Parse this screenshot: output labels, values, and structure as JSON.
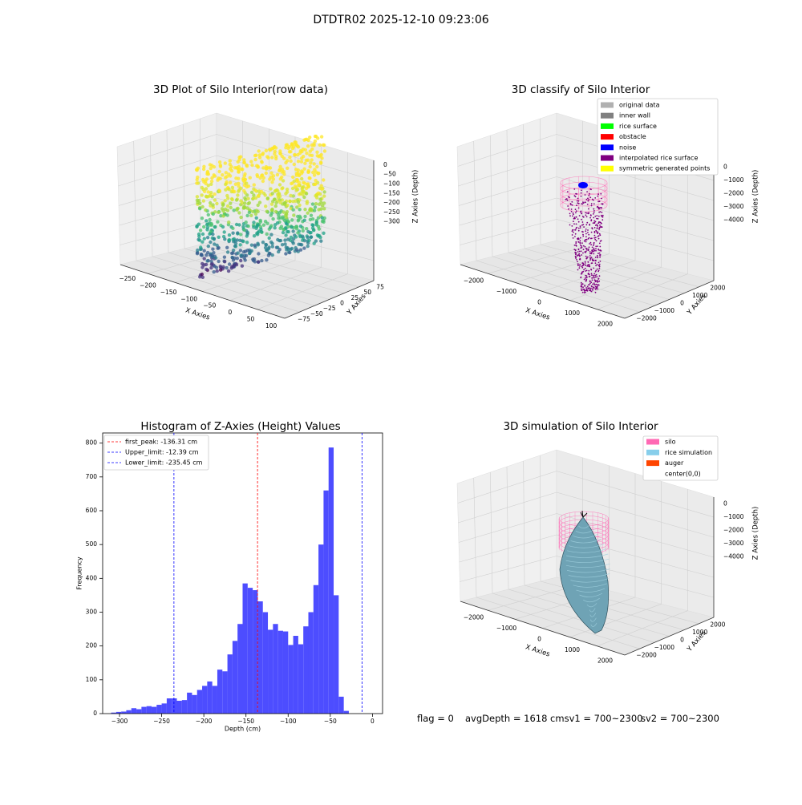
{
  "figure": {
    "suptitle": "DTDTR02 2025-12-10 09:23:06",
    "status": {
      "flag": "flag = 0",
      "avg_depth": "avgDepth = 1618 cmsv1 = 700~2300",
      "sv2": "sv2 = 700~2300"
    }
  },
  "colors": {
    "hist_bar": "#4d4dff",
    "first_peak_line": "#ff0000",
    "limit_line": "#0000ff",
    "silo": "#ff69b4",
    "rice": "#87ceeb",
    "auger": "#ff4500",
    "pane": "#f2f2f2"
  },
  "chart_data": [
    {
      "type": "scatter",
      "projection": "3d",
      "title": "3D Plot of Silo Interior(row data)",
      "xlabel": "X Axies",
      "ylabel": "Y Axies",
      "zlabel": "Z Axies (Depth)",
      "xticks": [
        "−250",
        "−200",
        "−150",
        "−100",
        "−50",
        "0",
        "50",
        "100"
      ],
      "yticks": [
        "−75",
        "−50",
        "−25",
        "0",
        "25",
        "50",
        "75"
      ],
      "zticks": [
        "0",
        "−50",
        "−100",
        "−150",
        "−200",
        "−250",
        "−300"
      ],
      "xlim": [
        -260,
        110
      ],
      "ylim": [
        -85,
        85
      ],
      "zlim": [
        -330,
        10
      ],
      "colormap": "viridis",
      "grid": true
    },
    {
      "type": "scatter",
      "projection": "3d",
      "title": "3D classify of Silo Interior",
      "xlabel": "X Axies",
      "ylabel": "Y Axies",
      "zlabel": "Z Axies (Depth)",
      "xticks": [
        "−2000",
        "−1000",
        "0",
        "1000",
        "2000"
      ],
      "yticks": [
        "−2000",
        "−1000",
        "0",
        "1000",
        "2000"
      ],
      "zticks": [
        "0",
        "−1000",
        "−2000",
        "−3000",
        "−4000"
      ],
      "legend_position": "upper-right",
      "legend": [
        {
          "label": "original data",
          "color": "#b0b0b0"
        },
        {
          "label": "inner wall",
          "color": "#808080"
        },
        {
          "label": "rice surface",
          "color": "#00ff00"
        },
        {
          "label": "obstacle",
          "color": "#ff0000"
        },
        {
          "label": "noise",
          "color": "#0000ff"
        },
        {
          "label": "interpolated rice surface",
          "color": "#800080"
        },
        {
          "label": "symmetric generated points",
          "color": "#ffff00"
        }
      ],
      "grid": true
    },
    {
      "type": "bar",
      "title": "Histogram of Z-Axies (Height) Values",
      "xlabel": "Depth (cm)",
      "ylabel": "Frequency",
      "xlim": [
        -320,
        12
      ],
      "ylim": [
        0,
        830
      ],
      "xticks": [
        -300,
        -250,
        -200,
        -150,
        -100,
        -50,
        0
      ],
      "xtick_labels": [
        "−300",
        "−250",
        "−200",
        "−150",
        "−100",
        "−50",
        "0"
      ],
      "yticks": [
        0,
        100,
        200,
        300,
        400,
        500,
        600,
        700,
        800
      ],
      "yticks_labels": [
        "0",
        "100",
        "200",
        "300",
        "400",
        "500",
        "600",
        "700",
        "800"
      ],
      "bin_start": -310,
      "bin_width": 6,
      "values": [
        3,
        5,
        6,
        10,
        16,
        13,
        20,
        22,
        20,
        26,
        30,
        45,
        45,
        38,
        40,
        62,
        55,
        70,
        82,
        95,
        82,
        130,
        125,
        175,
        215,
        265,
        385,
        372,
        365,
        332,
        300,
        248,
        265,
        245,
        243,
        203,
        230,
        205,
        258,
        300,
        380,
        500,
        660,
        787,
        350,
        50,
        8
      ],
      "vlines": [
        {
          "x": -136.31,
          "label": "first_peak: -136.31 cm",
          "color": "#ff0000"
        },
        {
          "x": -12.39,
          "label": "Upper_limit: -12.39 cm",
          "color": "#0000ff"
        },
        {
          "x": -235.45,
          "label": "Lower_limit: -235.45 cm",
          "color": "#0000ff"
        }
      ],
      "legend_position": "upper-left",
      "grid": false
    },
    {
      "type": "surface",
      "projection": "3d",
      "title": "3D simulation of Silo Interior",
      "xlabel": "X Axies",
      "ylabel": "Y Axies",
      "zlabel": "Z Axies (Depth)",
      "xticks": [
        "−2000",
        "−1000",
        "0",
        "1000",
        "2000"
      ],
      "yticks": [
        "−2000",
        "−1000",
        "0",
        "1000",
        "2000"
      ],
      "zticks": [
        "0",
        "−1000",
        "−2000",
        "−3000",
        "−4000"
      ],
      "legend_position": "upper-right",
      "legend": [
        {
          "label": "silo",
          "color": "#ff69b4"
        },
        {
          "label": "rice simulation",
          "color": "#87ceeb"
        },
        {
          "label": "auger",
          "color": "#ff4500"
        },
        {
          "label": "center(0,0)",
          "color": "none"
        }
      ],
      "grid": true
    }
  ]
}
